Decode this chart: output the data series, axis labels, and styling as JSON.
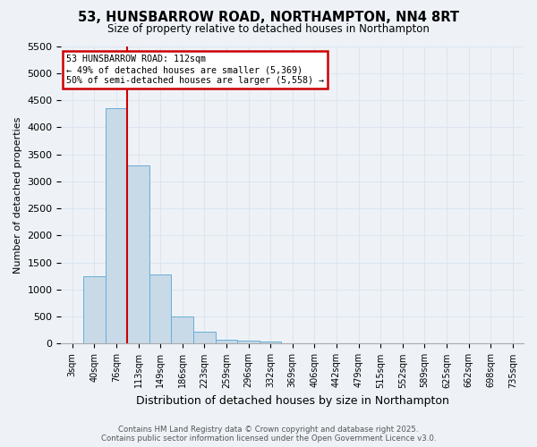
{
  "title": "53, HUNSBARROW ROAD, NORTHAMPTON, NN4 8RT",
  "subtitle": "Size of property relative to detached houses in Northampton",
  "xlabel": "Distribution of detached houses by size in Northampton",
  "ylabel": "Number of detached properties",
  "bin_labels": [
    "3sqm",
    "40sqm",
    "76sqm",
    "113sqm",
    "149sqm",
    "186sqm",
    "223sqm",
    "259sqm",
    "296sqm",
    "332sqm",
    "369sqm",
    "406sqm",
    "442sqm",
    "479sqm",
    "515sqm",
    "552sqm",
    "589sqm",
    "625sqm",
    "662sqm",
    "698sqm",
    "735sqm"
  ],
  "bar_heights": [
    0,
    1250,
    4350,
    3300,
    1280,
    500,
    220,
    80,
    50,
    40,
    0,
    0,
    0,
    0,
    0,
    0,
    0,
    0,
    0,
    0,
    0
  ],
  "bar_color": "#c8d9e8",
  "bar_edge_color": "#6aadd5",
  "grid_color": "#dce6ef",
  "property_line_bin": 3,
  "property_line_color": "#cc0000",
  "annotation_title": "53 HUNSBARROW ROAD: 112sqm",
  "annotation_line1": "← 49% of detached houses are smaller (5,369)",
  "annotation_line2": "50% of semi-detached houses are larger (5,558) →",
  "annotation_box_color": "#cc0000",
  "ylim": [
    0,
    5500
  ],
  "yticks": [
    0,
    500,
    1000,
    1500,
    2000,
    2500,
    3000,
    3500,
    4000,
    4500,
    5000,
    5500
  ],
  "footer_line1": "Contains HM Land Registry data © Crown copyright and database right 2025.",
  "footer_line2": "Contains public sector information licensed under the Open Government Licence v3.0.",
  "bg_color": "#eef2f7",
  "plot_bg_color": "#eef2f7"
}
